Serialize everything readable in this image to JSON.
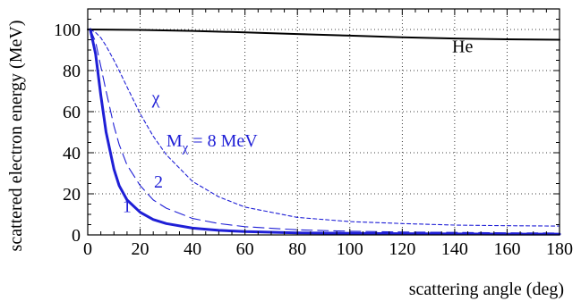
{
  "chart_data": {
    "type": "line",
    "xlabel": "scattering angle (deg)",
    "ylabel": "scattered electron energy (MeV)",
    "xlim": [
      0,
      180
    ],
    "ylim": [
      0,
      110
    ],
    "x_ticks": [
      0,
      20,
      40,
      60,
      80,
      100,
      120,
      140,
      160,
      180
    ],
    "y_ticks": [
      0,
      20,
      40,
      60,
      80,
      100
    ],
    "grid": true,
    "colors": {
      "he": "#000000",
      "chi": "#1f1fd6"
    },
    "series": [
      {
        "name": "He",
        "style": "solid",
        "color": "#000000",
        "x": [
          0,
          20,
          40,
          60,
          80,
          100,
          120,
          140,
          160,
          180
        ],
        "y": [
          100,
          99.8,
          99.3,
          98.6,
          97.8,
          97.0,
          96.2,
          95.6,
          95.2,
          95.0
        ]
      },
      {
        "name": "1",
        "style": "solid",
        "color": "#1f1fd6",
        "x": [
          1,
          3,
          5,
          7,
          10,
          12,
          15,
          20,
          25,
          30,
          40,
          50,
          60,
          80,
          100,
          120,
          140,
          160,
          180
        ],
        "y": [
          100,
          88,
          68,
          50,
          32,
          24,
          17,
          11,
          7.5,
          5.5,
          3.3,
          2.2,
          1.6,
          1.0,
          0.8,
          0.6,
          0.5,
          0.4,
          0.4
        ]
      },
      {
        "name": "2",
        "style": "dashed",
        "color": "#1f1fd6",
        "x": [
          1,
          3,
          5,
          7,
          10,
          12,
          15,
          20,
          25,
          30,
          40,
          50,
          60,
          80,
          100,
          120,
          140,
          160,
          180
        ],
        "y": [
          100,
          94,
          82,
          70,
          53,
          44,
          34,
          24,
          17,
          13,
          8,
          5.5,
          4,
          2.5,
          1.8,
          1.4,
          1.2,
          1.0,
          0.9
        ]
      },
      {
        "name": "M_χ = 8 MeV",
        "style": "dashed",
        "color": "#1f1fd6",
        "x": [
          1,
          3,
          5,
          7,
          10,
          12,
          15,
          20,
          25,
          30,
          40,
          50,
          60,
          80,
          100,
          120,
          140,
          160,
          180
        ],
        "y": [
          100,
          98.5,
          96,
          92,
          85,
          80,
          72,
          59,
          48,
          39,
          26,
          18.5,
          13.5,
          8.5,
          6.5,
          5.5,
          4.8,
          4.5,
          4.3
        ]
      }
    ],
    "annotations": [
      {
        "text": "He",
        "x": 143,
        "y": 89,
        "color": "#000000"
      },
      {
        "text": "χ",
        "x": 26,
        "y": 64,
        "color": "#1f1fd6"
      },
      {
        "text": "1",
        "x": 15,
        "y": 11,
        "color": "#1f1fd6"
      },
      {
        "text": "2",
        "x": 27,
        "y": 23,
        "color": "#1f1fd6"
      }
    ],
    "mass_label": {
      "prefix": "M",
      "sub": "χ",
      "rest": " = 8 MeV",
      "x": 30,
      "y": 43,
      "color": "#1f1fd6"
    }
  }
}
